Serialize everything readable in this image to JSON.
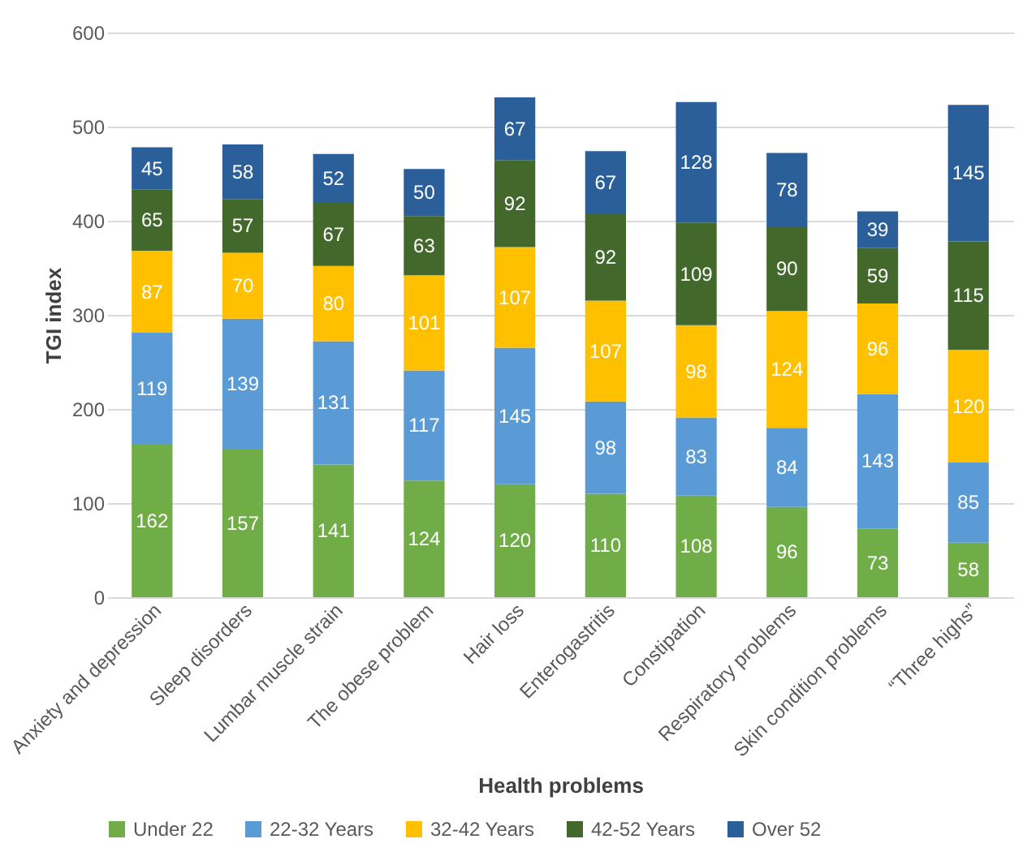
{
  "chart_data": {
    "type": "bar",
    "stacked": true,
    "xlabel": "Health problems",
    "ylabel": "TGI index",
    "categories": [
      "Anxiety and depression",
      "Sleep disorders",
      "Lumbar muscle strain",
      "The obese problem",
      "Hair loss",
      "Enterogastritis",
      "Constipation",
      "Respiratory problems",
      "Skin condition problems",
      "“Three highs”"
    ],
    "series": [
      {
        "name": "Under 22",
        "color": "#70ad47",
        "values": [
          162,
          157,
          141,
          124,
          120,
          110,
          108,
          96,
          73,
          58
        ]
      },
      {
        "name": "22-32 Years",
        "color": "#5b9bd5",
        "values": [
          119,
          139,
          131,
          117,
          145,
          98,
          83,
          84,
          143,
          85
        ]
      },
      {
        "name": "32-42 Years",
        "color": "#ffc000",
        "values": [
          87,
          70,
          80,
          101,
          107,
          107,
          98,
          124,
          96,
          120
        ]
      },
      {
        "name": "42-52 Years",
        "color": "#43682b",
        "values": [
          65,
          57,
          67,
          63,
          92,
          92,
          109,
          90,
          59,
          115
        ]
      },
      {
        "name": "Over 52",
        "color": "#2a5f9a",
        "values": [
          45,
          58,
          52,
          50,
          67,
          67,
          128,
          78,
          39,
          145
        ]
      }
    ],
    "ylim": [
      0,
      600
    ],
    "yticks": [
      0,
      100,
      200,
      300,
      400,
      500,
      600
    ],
    "grid": "y",
    "legend": "bottom",
    "data_labels": true
  }
}
